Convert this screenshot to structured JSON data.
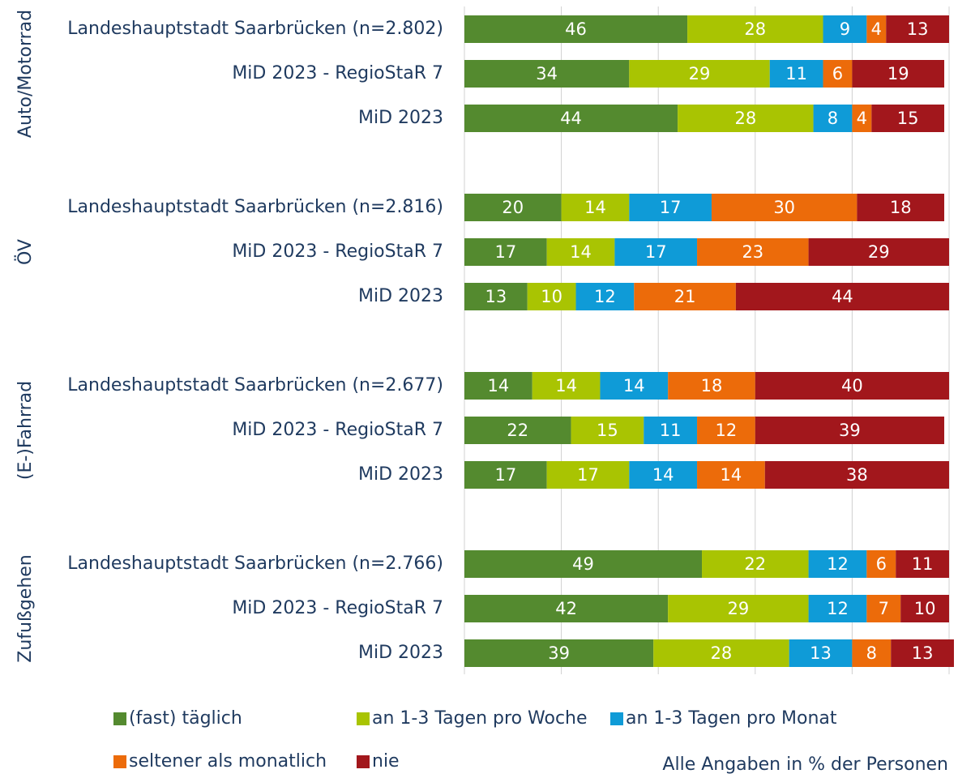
{
  "chart_data": {
    "type": "stacked-bar-horizontal",
    "groups": [
      "Auto/Motorrad",
      "ÖV",
      "(E-)Fahrrad",
      "Zufußgehen"
    ],
    "categories": [
      "Landeshauptstadt Saarbrücken (n=2.802)",
      "MiD 2023 - RegioStaR 7",
      "MiD 2023",
      "Landeshauptstadt Saarbrücken (n=2.816)",
      "MiD 2023 - RegioStaR 7",
      "MiD 2023",
      "Landeshauptstadt Saarbrücken (n=2.677)",
      "MiD 2023 - RegioStaR 7",
      "MiD 2023",
      "Landeshauptstadt Saarbrücken (n=2.766)",
      "MiD 2023 - RegioStaR 7",
      "MiD 2023"
    ],
    "series": [
      {
        "name": "(fast) täglich",
        "color": "#548a2f",
        "values": [
          46,
          34,
          44,
          20,
          17,
          13,
          14,
          22,
          17,
          49,
          42,
          39
        ]
      },
      {
        "name": "an 1-3 Tagen pro Woche",
        "color": "#a9c402",
        "values": [
          28,
          29,
          28,
          14,
          14,
          10,
          14,
          15,
          17,
          22,
          29,
          28
        ]
      },
      {
        "name": "an 1-3 Tagen pro Monat",
        "color": "#0f9bd7",
        "values": [
          9,
          11,
          8,
          17,
          17,
          12,
          14,
          11,
          14,
          12,
          12,
          13
        ]
      },
      {
        "name": "seltener als monatlich",
        "color": "#ec6b0a",
        "values": [
          4,
          6,
          4,
          30,
          23,
          21,
          18,
          12,
          14,
          6,
          7,
          8
        ]
      },
      {
        "name": "nie",
        "color": "#a2171c",
        "values": [
          13,
          19,
          15,
          18,
          29,
          44,
          40,
          39,
          38,
          11,
          10,
          13
        ]
      }
    ],
    "xlim": [
      0,
      100
    ],
    "xticks": [
      0,
      20,
      40,
      60,
      80,
      100
    ],
    "grid": true,
    "note": "Alle Angaben in % der Personen"
  }
}
